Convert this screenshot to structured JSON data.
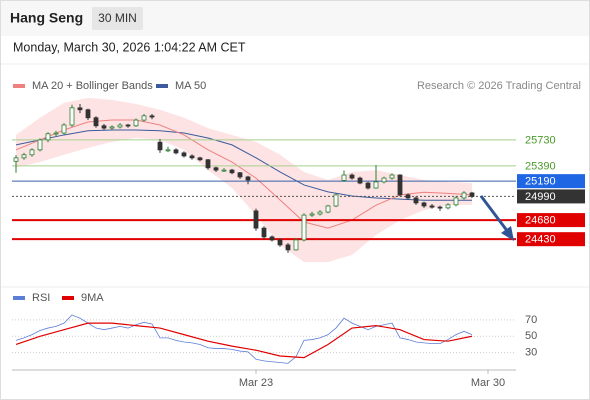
{
  "header": {
    "title": "Hang Seng",
    "interval": "30 MIN",
    "timestamp": "Monday, March 30, 2026 1:04:22 AM CET"
  },
  "chart_data": {
    "type": "candlestick",
    "legend": [
      {
        "name": "MA 20 + Bollinger Bands",
        "color": "#f08080"
      },
      {
        "name": "MA 50",
        "color": "#3b5b9c"
      }
    ],
    "source": "Research © 2026 Trading Central",
    "xlim": [
      -0.5,
      62.5
    ],
    "xticks": [
      {
        "value": 30,
        "label": "Mar 23"
      },
      {
        "value": 59,
        "label": "Mar 30"
      }
    ],
    "ylim": [
      23830,
      26580
    ],
    "candles": {
      "up_color": "#2e7d32",
      "down_color": "#333333",
      "open": [
        25450,
        25495,
        25535,
        25600,
        25730,
        25810,
        25820,
        25925,
        26150,
        26125,
        26020,
        25915,
        25885,
        25900,
        25925,
        25915,
        25990,
        26045,
        25700,
        25600,
        25600,
        25560,
        25520,
        25495,
        25470,
        25365,
        25335,
        25335,
        25300,
        25245,
        24800,
        24575,
        24460,
        24420,
        24355,
        24290,
        24420,
        24745,
        24760,
        24785,
        24865,
        25200,
        25270,
        25230,
        25165,
        25100,
        25180,
        25230,
        25270,
        25010,
        24970,
        24905,
        24865,
        24850,
        24840,
        24880,
        24970,
        25035
      ],
      "high": [
        25530,
        25560,
        25620,
        25750,
        25830,
        25850,
        25950,
        26190,
        26200,
        26140,
        26040,
        25940,
        25920,
        25950,
        25940,
        26010,
        26070,
        26070,
        25740,
        25640,
        25620,
        25580,
        25540,
        25510,
        25480,
        25380,
        25360,
        25350,
        25310,
        25260,
        24830,
        24600,
        24480,
        24440,
        24380,
        24440,
        24770,
        24790,
        24810,
        24880,
        25030,
        25330,
        25290,
        25250,
        25180,
        25400,
        25250,
        25290,
        25280,
        25030,
        24990,
        24920,
        24890,
        24870,
        24900,
        24990,
        25060,
        25050
      ],
      "low": [
        25300,
        25470,
        25510,
        25580,
        25700,
        25780,
        25800,
        25900,
        26080,
        25990,
        25890,
        25860,
        25860,
        25880,
        25890,
        25900,
        25970,
        26000,
        25560,
        25570,
        25540,
        25500,
        25470,
        25450,
        25340,
        25310,
        25310,
        25280,
        25220,
        25150,
        24540,
        24430,
        24400,
        24330,
        24250,
        24280,
        24400,
        24720,
        24740,
        24770,
        24850,
        25180,
        25210,
        25150,
        25080,
        25090,
        25160,
        25210,
        24990,
        24950,
        24880,
        24840,
        24830,
        24800,
        24820,
        24860,
        24950,
        24970
      ],
      "close": [
        25495,
        25535,
        25600,
        25730,
        25810,
        25820,
        25925,
        26150,
        26125,
        26020,
        25915,
        25885,
        25900,
        25925,
        25915,
        25990,
        26045,
        26030,
        25600,
        25600,
        25560,
        25520,
        25495,
        25470,
        25365,
        25335,
        25335,
        25300,
        25245,
        25205,
        24575,
        24460,
        24420,
        24355,
        24290,
        24420,
        24745,
        24760,
        24785,
        24865,
        25010,
        25270,
        25230,
        25165,
        25100,
        25180,
        25230,
        25270,
        25010,
        24970,
        24905,
        24865,
        24850,
        24840,
        24880,
        24970,
        25035,
        24990
      ]
    },
    "overlay_index": [
      0,
      3,
      6,
      9,
      12,
      15,
      18,
      21,
      24,
      27,
      30,
      33,
      36,
      39,
      42,
      45,
      48,
      51,
      54,
      57
    ],
    "ma20": [
      25600,
      25730,
      25860,
      25965,
      25990,
      25990,
      25925,
      25795,
      25600,
      25440,
      25230,
      24945,
      24655,
      24575,
      24680,
      24875,
      25010,
      25045,
      25030,
      25010
    ],
    "bollinger_upper": [
      25795,
      26020,
      26215,
      26280,
      26255,
      26200,
      26125,
      26020,
      25885,
      25795,
      25705,
      25535,
      25310,
      25205,
      25310,
      25335,
      25270,
      25205,
      25180,
      25165
    ],
    "bollinger_lower": [
      25365,
      25440,
      25535,
      25625,
      25705,
      25755,
      25730,
      25600,
      25335,
      25100,
      24745,
      24355,
      24130,
      24130,
      24225,
      24485,
      24680,
      24810,
      24880,
      24880
    ],
    "band_color": "#fde3e3",
    "ma50": [
      25665,
      25730,
      25795,
      25850,
      25860,
      25860,
      25850,
      25820,
      25755,
      25665,
      25495,
      25310,
      25140,
      25050,
      24995,
      24970,
      24955,
      24940,
      24940,
      24940
    ],
    "levels": [
      {
        "value": 25730,
        "line_color": "#a8d08d",
        "line_width": 1,
        "text_color": "#4a9a2a",
        "label_box": null,
        "dashed": false
      },
      {
        "value": 25390,
        "line_color": "#a8d08d",
        "line_width": 1,
        "text_color": "#4a9a2a",
        "label_box": null,
        "dashed": false
      },
      {
        "value": 25190,
        "line_color": "#3a5fa8",
        "line_width": 1,
        "text_color": "#ffffff",
        "label_box": "#1f66e5",
        "dashed": false
      },
      {
        "value": 24990,
        "line_color": "#555555",
        "line_width": 1,
        "text_color": "#ffffff",
        "label_box": "#333333",
        "dashed": true
      },
      {
        "value": 24680,
        "line_color": "#e00000",
        "line_width": 2,
        "text_color": "#ffffff",
        "label_box": "#e00000",
        "dashed": false
      },
      {
        "value": 24430,
        "line_color": "#e00000",
        "line_width": 2,
        "text_color": "#ffffff",
        "label_box": "#e00000",
        "dashed": false
      }
    ],
    "rsi": {
      "legend": [
        {
          "name": "RSI",
          "color": "#5b7fd6"
        },
        {
          "name": "9MA",
          "color": "#e00000"
        }
      ],
      "ylim": [
        15,
        82
      ],
      "yticks": [
        30,
        50,
        70
      ],
      "values": [
        45,
        48,
        52,
        57,
        60,
        62,
        66,
        76,
        72,
        66,
        60,
        58,
        60,
        62,
        60,
        64,
        67,
        65,
        48,
        48,
        45,
        43,
        42,
        40,
        36,
        35,
        35,
        34,
        32,
        31,
        22,
        20,
        19,
        18,
        17,
        25,
        45,
        46,
        48,
        52,
        60,
        72,
        66,
        62,
        58,
        62,
        64,
        66,
        48,
        46,
        43,
        42,
        41,
        41,
        46,
        52,
        56,
        52
      ],
      "ma_values": [
        40,
        50,
        58,
        66,
        66,
        63,
        60,
        52,
        44,
        38,
        33,
        26,
        24,
        40,
        60,
        63,
        58,
        46,
        44,
        50
      ]
    }
  }
}
